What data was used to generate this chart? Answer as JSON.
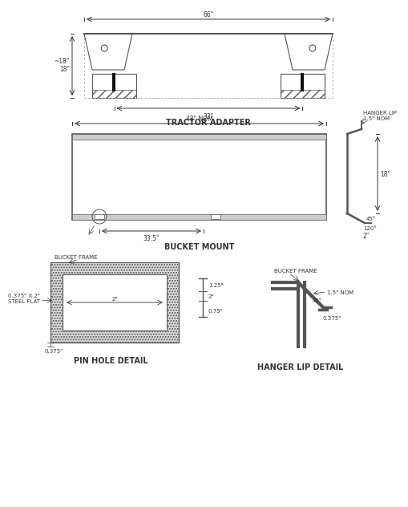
{
  "bg_color": "#ffffff",
  "line_color": "#555555",
  "title_color": "#333333",
  "sections": {
    "tractor_adapter": {
      "label": "TRACTOR ADAPTER",
      "dim_66": "66\"",
      "dim_33": "33\"",
      "dim_18": "~18\"",
      "dim_18b": "18\""
    },
    "bucket_mount": {
      "label": "BUCKET MOUNT",
      "dim_48nom": "48\" NOM",
      "dim_33_5": "33.5\"",
      "dim_18": "18\"",
      "dim_45": "45°",
      "dim_120": "120°",
      "dim_2": "2\"",
      "dim_hanger_lip": "HANGER LIP",
      "dim_1_5nom": "1.5\" NOM"
    },
    "pin_hole": {
      "label": "PIN HOLE DETAIL",
      "bucket_frame": "BUCKET FRAME",
      "steel_flat": "0.375\" X 2\"\nSTEEL FLAT",
      "dim_0375": "0.375\"",
      "dim_2": "2\""
    },
    "hanger_lip": {
      "label": "HANGER LIP DETAIL",
      "bucket_frame": "BUCKET FRAME",
      "dim_1_25": "1.25\"",
      "dim_2": "2\"",
      "dim_0_75": "0.75\"",
      "dim_1_5nom": "1.5\" NOM",
      "dim_45": "45°",
      "dim_0_375": "0.375\""
    }
  }
}
